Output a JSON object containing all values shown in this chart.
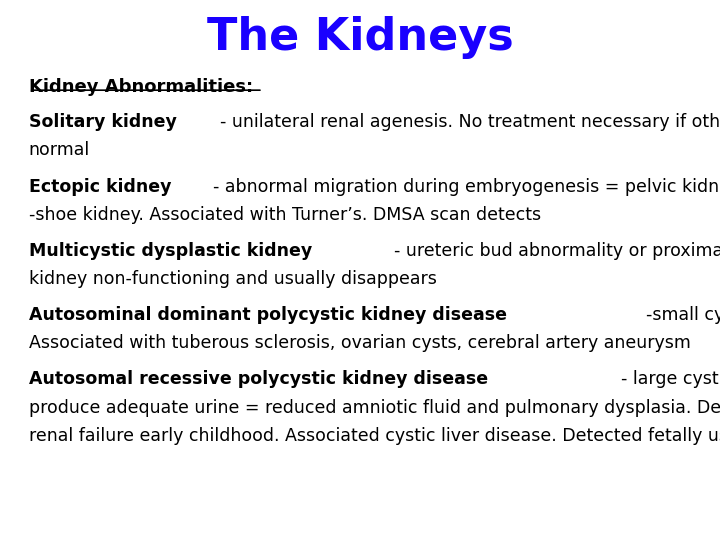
{
  "title": "The Kidneys",
  "title_color": "#1a00ff",
  "title_fontsize": 32,
  "background_color": "#ffffff",
  "text_color": "#000000",
  "heading": "Kidney Abnormalities:",
  "heading_fontsize": 13,
  "body_fontsize": 12.5,
  "entries": [
    {
      "bold_part": "Solitary kidney",
      "rest": "- unilateral renal agenesis. No treatment necessary if other kidney is\nnormal"
    },
    {
      "bold_part": "Ectopic kidney",
      "rest": "- abnormal migration during embryogenesis = pelvic kidney or horse\n-shoe kidney. Associated with Turner’s. DMSA scan detects"
    },
    {
      "bold_part": "Multicystic dysplastic kidney",
      "rest": "- ureteric bud abnormality or proximal ureteric atresia.\nkidney non-functioning and usually disappears"
    },
    {
      "bold_part": "Autosominal dominant polycystic kidney disease",
      "rest": "-small cysts throughout kidney.\nAssociated with tuberous sclerosis, ovarian cysts, cerebral artery aneurysm"
    },
    {
      "bold_part": "Autosomal recessive polycystic kidney disease",
      "rest": "- large cystic kidneys don’t\nproduce adequate urine = reduced amniotic fluid and pulmonary dysplasia. Develop\nrenal failure early childhood. Associated cystic liver disease. Detected fetally usually."
    }
  ]
}
